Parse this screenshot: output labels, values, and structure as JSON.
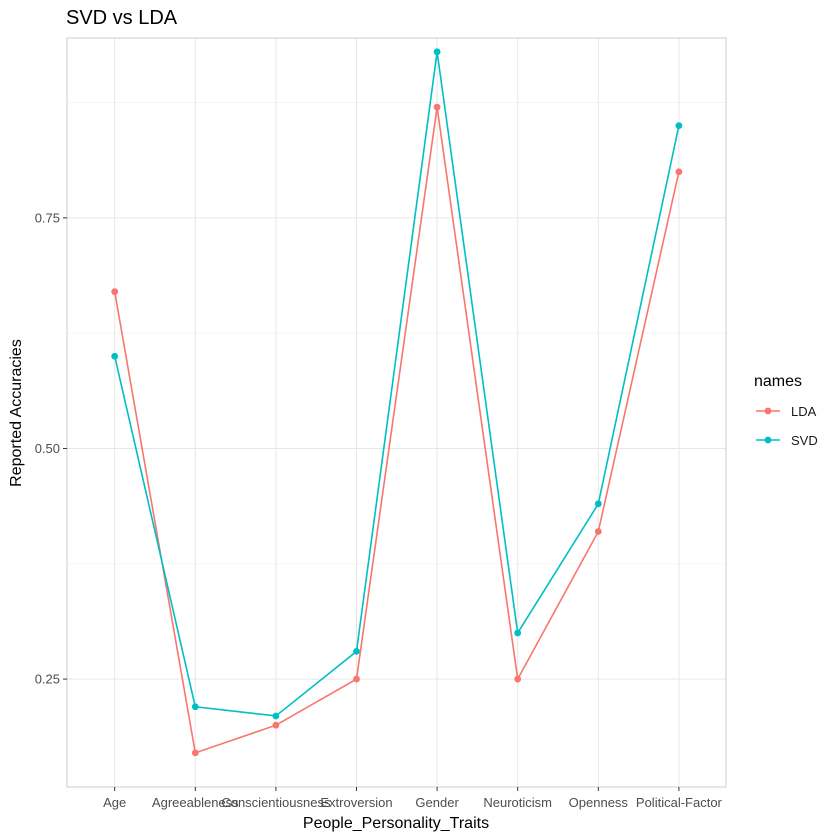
{
  "chart_data": {
    "type": "line",
    "title": "SVD vs LDA",
    "xlabel": "People_Personality_Traits",
    "ylabel": "Reported Accuracies",
    "categories": [
      "Age",
      "Agreeableness",
      "Conscientiousness",
      "Extroversion",
      "Gender",
      "Neuroticism",
      "Openness",
      "Political-Factor"
    ],
    "ylim": [
      0.133,
      0.945
    ],
    "yticks": [
      0.25,
      0.5,
      0.75
    ],
    "ytick_labels": [
      "0.25",
      "0.50",
      "0.75"
    ],
    "grid": true,
    "legend": {
      "title": "names",
      "placement": "right"
    },
    "series": [
      {
        "name": "LDA",
        "color": "#F8766D",
        "values": [
          0.67,
          0.17,
          0.2,
          0.25,
          0.87,
          0.25,
          0.41,
          0.8
        ]
      },
      {
        "name": "SVD",
        "color": "#00BFC4",
        "values": [
          0.6,
          0.22,
          0.21,
          0.28,
          0.93,
          0.3,
          0.44,
          0.85
        ]
      }
    ]
  }
}
